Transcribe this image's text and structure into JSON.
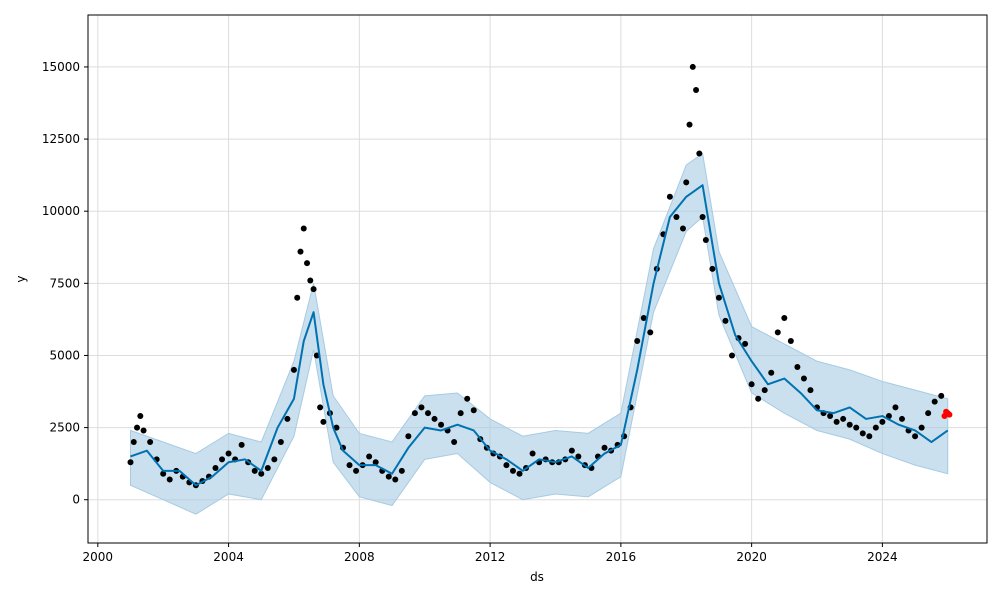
{
  "chart_data": {
    "type": "scatter",
    "title": "",
    "xlabel": "ds",
    "ylabel": "y",
    "xlim": [
      1999.7,
      2027.2
    ],
    "ylim": [
      -1500,
      16800
    ],
    "xticks": [
      2000,
      2004,
      2008,
      2012,
      2016,
      2020,
      2024
    ],
    "xtick_labels": [
      "2000",
      "2004",
      "2008",
      "2012",
      "2016",
      "2020",
      "2024"
    ],
    "yticks": [
      0,
      2500,
      5000,
      7500,
      10000,
      12500,
      15000
    ],
    "ytick_labels": [
      "0",
      "2500",
      "5000",
      "7500",
      "10000",
      "12500",
      "15000"
    ],
    "grid": true,
    "colors": {
      "observed": "#000000",
      "forecast": "#0072B2",
      "interval": "#a6cbe3",
      "recent": "#ff0000",
      "grid": "#dddddd"
    },
    "series": [
      {
        "role": "observed",
        "marker": "dots",
        "points": [
          [
            2001.0,
            1300
          ],
          [
            2001.1,
            2000
          ],
          [
            2001.2,
            2500
          ],
          [
            2001.3,
            2900
          ],
          [
            2001.4,
            2400
          ],
          [
            2001.6,
            2000
          ],
          [
            2001.8,
            1400
          ],
          [
            2002.0,
            900
          ],
          [
            2002.2,
            700
          ],
          [
            2002.4,
            1000
          ],
          [
            2002.6,
            800
          ],
          [
            2002.8,
            600
          ],
          [
            2003.0,
            500
          ],
          [
            2003.2,
            650
          ],
          [
            2003.4,
            800
          ],
          [
            2003.6,
            1100
          ],
          [
            2003.8,
            1400
          ],
          [
            2004.0,
            1600
          ],
          [
            2004.2,
            1400
          ],
          [
            2004.4,
            1900
          ],
          [
            2004.6,
            1300
          ],
          [
            2004.8,
            1000
          ],
          [
            2005.0,
            900
          ],
          [
            2005.2,
            1100
          ],
          [
            2005.4,
            1400
          ],
          [
            2005.6,
            2000
          ],
          [
            2005.8,
            2800
          ],
          [
            2006.0,
            4500
          ],
          [
            2006.1,
            7000
          ],
          [
            2006.2,
            8600
          ],
          [
            2006.3,
            9400
          ],
          [
            2006.4,
            8200
          ],
          [
            2006.5,
            7600
          ],
          [
            2006.6,
            7300
          ],
          [
            2006.7,
            5000
          ],
          [
            2006.8,
            3200
          ],
          [
            2006.9,
            2700
          ],
          [
            2007.1,
            3000
          ],
          [
            2007.3,
            2500
          ],
          [
            2007.5,
            1800
          ],
          [
            2007.7,
            1200
          ],
          [
            2007.9,
            1000
          ],
          [
            2008.1,
            1200
          ],
          [
            2008.3,
            1500
          ],
          [
            2008.5,
            1300
          ],
          [
            2008.7,
            1000
          ],
          [
            2008.9,
            800
          ],
          [
            2009.1,
            700
          ],
          [
            2009.3,
            1000
          ],
          [
            2009.5,
            2200
          ],
          [
            2009.7,
            3000
          ],
          [
            2009.9,
            3200
          ],
          [
            2010.1,
            3000
          ],
          [
            2010.3,
            2800
          ],
          [
            2010.5,
            2600
          ],
          [
            2010.7,
            2400
          ],
          [
            2010.9,
            2000
          ],
          [
            2011.1,
            3000
          ],
          [
            2011.3,
            3500
          ],
          [
            2011.5,
            3100
          ],
          [
            2011.7,
            2100
          ],
          [
            2011.9,
            1800
          ],
          [
            2012.1,
            1600
          ],
          [
            2012.3,
            1500
          ],
          [
            2012.5,
            1200
          ],
          [
            2012.7,
            1000
          ],
          [
            2012.9,
            900
          ],
          [
            2013.1,
            1100
          ],
          [
            2013.3,
            1600
          ],
          [
            2013.5,
            1300
          ],
          [
            2013.7,
            1400
          ],
          [
            2013.9,
            1300
          ],
          [
            2014.1,
            1300
          ],
          [
            2014.3,
            1400
          ],
          [
            2014.5,
            1700
          ],
          [
            2014.7,
            1500
          ],
          [
            2014.9,
            1200
          ],
          [
            2015.1,
            1100
          ],
          [
            2015.3,
            1500
          ],
          [
            2015.5,
            1800
          ],
          [
            2015.7,
            1700
          ],
          [
            2015.9,
            1900
          ],
          [
            2016.1,
            2200
          ],
          [
            2016.3,
            3200
          ],
          [
            2016.5,
            5500
          ],
          [
            2016.7,
            6300
          ],
          [
            2016.9,
            5800
          ],
          [
            2017.1,
            8000
          ],
          [
            2017.3,
            9200
          ],
          [
            2017.5,
            10500
          ],
          [
            2017.7,
            9800
          ],
          [
            2017.9,
            9400
          ],
          [
            2018.0,
            11000
          ],
          [
            2018.1,
            13000
          ],
          [
            2018.2,
            15000
          ],
          [
            2018.3,
            14200
          ],
          [
            2018.4,
            12000
          ],
          [
            2018.5,
            9800
          ],
          [
            2018.6,
            9000
          ],
          [
            2018.8,
            8000
          ],
          [
            2019.0,
            7000
          ],
          [
            2019.2,
            6200
          ],
          [
            2019.4,
            5000
          ],
          [
            2019.6,
            5600
          ],
          [
            2019.8,
            5400
          ],
          [
            2020.0,
            4000
          ],
          [
            2020.2,
            3500
          ],
          [
            2020.4,
            3800
          ],
          [
            2020.6,
            4400
          ],
          [
            2020.8,
            5800
          ],
          [
            2021.0,
            6300
          ],
          [
            2021.2,
            5500
          ],
          [
            2021.4,
            4600
          ],
          [
            2021.6,
            4200
          ],
          [
            2021.8,
            3800
          ],
          [
            2022.0,
            3200
          ],
          [
            2022.2,
            3000
          ],
          [
            2022.4,
            2900
          ],
          [
            2022.6,
            2700
          ],
          [
            2022.8,
            2800
          ],
          [
            2023.0,
            2600
          ],
          [
            2023.2,
            2500
          ],
          [
            2023.4,
            2300
          ],
          [
            2023.6,
            2200
          ],
          [
            2023.8,
            2500
          ],
          [
            2024.0,
            2700
          ],
          [
            2024.2,
            2900
          ],
          [
            2024.4,
            3200
          ],
          [
            2024.6,
            2800
          ],
          [
            2024.8,
            2400
          ],
          [
            2025.0,
            2200
          ],
          [
            2025.2,
            2500
          ],
          [
            2025.4,
            3000
          ],
          [
            2025.6,
            3400
          ],
          [
            2025.8,
            3600
          ]
        ]
      },
      {
        "role": "recent",
        "marker": "dots",
        "points": [
          [
            2025.9,
            2900
          ],
          [
            2025.95,
            3050
          ],
          [
            2026.0,
            3000
          ],
          [
            2026.05,
            2950
          ]
        ]
      },
      {
        "role": "forecast",
        "marker": "line",
        "points": [
          [
            2001.0,
            1500
          ],
          [
            2001.5,
            1700
          ],
          [
            2002.0,
            1000
          ],
          [
            2002.5,
            1000
          ],
          [
            2003.0,
            500
          ],
          [
            2003.5,
            800
          ],
          [
            2004.0,
            1300
          ],
          [
            2004.5,
            1400
          ],
          [
            2005.0,
            1000
          ],
          [
            2005.5,
            2500
          ],
          [
            2006.0,
            3500
          ],
          [
            2006.3,
            5500
          ],
          [
            2006.6,
            6500
          ],
          [
            2006.9,
            4000
          ],
          [
            2007.2,
            2500
          ],
          [
            2007.5,
            1700
          ],
          [
            2008.0,
            1200
          ],
          [
            2008.5,
            1200
          ],
          [
            2009.0,
            900
          ],
          [
            2009.5,
            1800
          ],
          [
            2010.0,
            2500
          ],
          [
            2010.5,
            2400
          ],
          [
            2011.0,
            2600
          ],
          [
            2011.5,
            2400
          ],
          [
            2012.0,
            1700
          ],
          [
            2012.5,
            1400
          ],
          [
            2013.0,
            1000
          ],
          [
            2013.5,
            1400
          ],
          [
            2014.0,
            1300
          ],
          [
            2014.5,
            1500
          ],
          [
            2015.0,
            1100
          ],
          [
            2015.5,
            1600
          ],
          [
            2016.0,
            1900
          ],
          [
            2016.5,
            4500
          ],
          [
            2017.0,
            7500
          ],
          [
            2017.5,
            9800
          ],
          [
            2018.0,
            10500
          ],
          [
            2018.5,
            10900
          ],
          [
            2019.0,
            7500
          ],
          [
            2019.5,
            5700
          ],
          [
            2020.0,
            4800
          ],
          [
            2020.5,
            4000
          ],
          [
            2021.0,
            4200
          ],
          [
            2021.5,
            3700
          ],
          [
            2022.0,
            3100
          ],
          [
            2022.5,
            3000
          ],
          [
            2023.0,
            3200
          ],
          [
            2023.5,
            2800
          ],
          [
            2024.0,
            2900
          ],
          [
            2024.5,
            2600
          ],
          [
            2025.0,
            2400
          ],
          [
            2025.5,
            2000
          ],
          [
            2026.0,
            2400
          ]
        ]
      },
      {
        "role": "interval",
        "marker": "band",
        "upper": [
          [
            2001.0,
            2400
          ],
          [
            2002.0,
            2000
          ],
          [
            2003.0,
            1600
          ],
          [
            2004.0,
            2300
          ],
          [
            2005.0,
            2000
          ],
          [
            2006.0,
            4800
          ],
          [
            2006.6,
            7500
          ],
          [
            2007.2,
            3600
          ],
          [
            2008.0,
            2300
          ],
          [
            2009.0,
            2000
          ],
          [
            2010.0,
            3600
          ],
          [
            2011.0,
            3700
          ],
          [
            2012.0,
            2800
          ],
          [
            2013.0,
            2200
          ],
          [
            2014.0,
            2400
          ],
          [
            2015.0,
            2300
          ],
          [
            2016.0,
            3000
          ],
          [
            2017.0,
            8700
          ],
          [
            2018.0,
            11600
          ],
          [
            2018.5,
            12000
          ],
          [
            2019.0,
            8600
          ],
          [
            2020.0,
            6000
          ],
          [
            2021.0,
            5400
          ],
          [
            2022.0,
            4800
          ],
          [
            2023.0,
            4500
          ],
          [
            2024.0,
            4100
          ],
          [
            2025.0,
            3800
          ],
          [
            2026.0,
            3500
          ]
        ],
        "lower": [
          [
            2001.0,
            500
          ],
          [
            2002.0,
            0
          ],
          [
            2003.0,
            -500
          ],
          [
            2004.0,
            200
          ],
          [
            2005.0,
            0
          ],
          [
            2006.0,
            2200
          ],
          [
            2006.6,
            5200
          ],
          [
            2007.2,
            1300
          ],
          [
            2008.0,
            100
          ],
          [
            2009.0,
            -200
          ],
          [
            2010.0,
            1400
          ],
          [
            2011.0,
            1600
          ],
          [
            2012.0,
            600
          ],
          [
            2013.0,
            0
          ],
          [
            2014.0,
            200
          ],
          [
            2015.0,
            100
          ],
          [
            2016.0,
            800
          ],
          [
            2017.0,
            6500
          ],
          [
            2018.0,
            9300
          ],
          [
            2018.5,
            9800
          ],
          [
            2019.0,
            6400
          ],
          [
            2020.0,
            3700
          ],
          [
            2021.0,
            3000
          ],
          [
            2022.0,
            2400
          ],
          [
            2023.0,
            2100
          ],
          [
            2024.0,
            1600
          ],
          [
            2025.0,
            1200
          ],
          [
            2026.0,
            900
          ]
        ]
      }
    ]
  }
}
